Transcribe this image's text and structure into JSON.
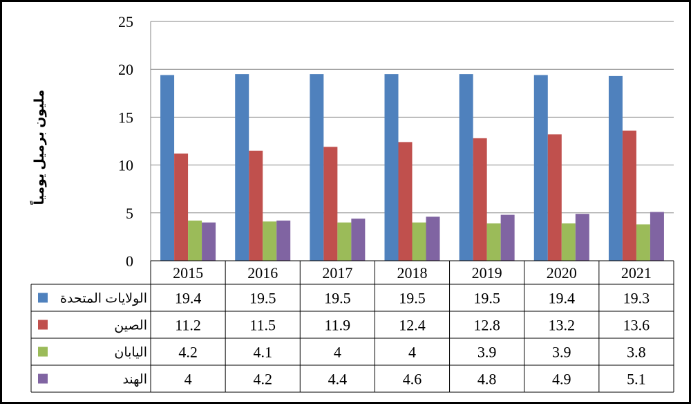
{
  "chart_data": {
    "type": "bar",
    "title": "",
    "xlabel": "",
    "ylabel": "مليون برميل يومياً",
    "ylim": [
      0,
      25
    ],
    "yticks": [
      0,
      5,
      10,
      15,
      20,
      25
    ],
    "grid": true,
    "legend": "data-table",
    "categories": [
      "2015",
      "2016",
      "2017",
      "2018",
      "2019",
      "2020",
      "2021"
    ],
    "series": [
      {
        "name": "الولايات المتحدة",
        "color": "#4F81BD",
        "values": [
          19.4,
          19.5,
          19.5,
          19.5,
          19.5,
          19.4,
          19.3
        ],
        "labels": [
          "19.4",
          "19.5",
          "19.5",
          "19.5",
          "19.5",
          "19.4",
          "19.3"
        ]
      },
      {
        "name": "الصين",
        "color": "#C0504D",
        "values": [
          11.2,
          11.5,
          11.9,
          12.4,
          12.8,
          13.2,
          13.6
        ],
        "labels": [
          "11.2",
          "11.5",
          "11.9",
          "12.4",
          "12.8",
          "13.2",
          "13.6"
        ]
      },
      {
        "name": "اليابان",
        "color": "#9BBB59",
        "values": [
          4.2,
          4.1,
          4,
          4,
          3.9,
          3.9,
          3.8
        ],
        "labels": [
          "4.2",
          "4.1",
          "4",
          "4",
          "3.9",
          "3.9",
          "3.8"
        ]
      },
      {
        "name": "الهند",
        "color": "#8064A2",
        "values": [
          4,
          4.2,
          4.4,
          4.6,
          4.8,
          4.9,
          5.1
        ],
        "labels": [
          "4",
          "4.2",
          "4.4",
          "4.6",
          "4.8",
          "4.9",
          "5.1"
        ]
      }
    ]
  }
}
